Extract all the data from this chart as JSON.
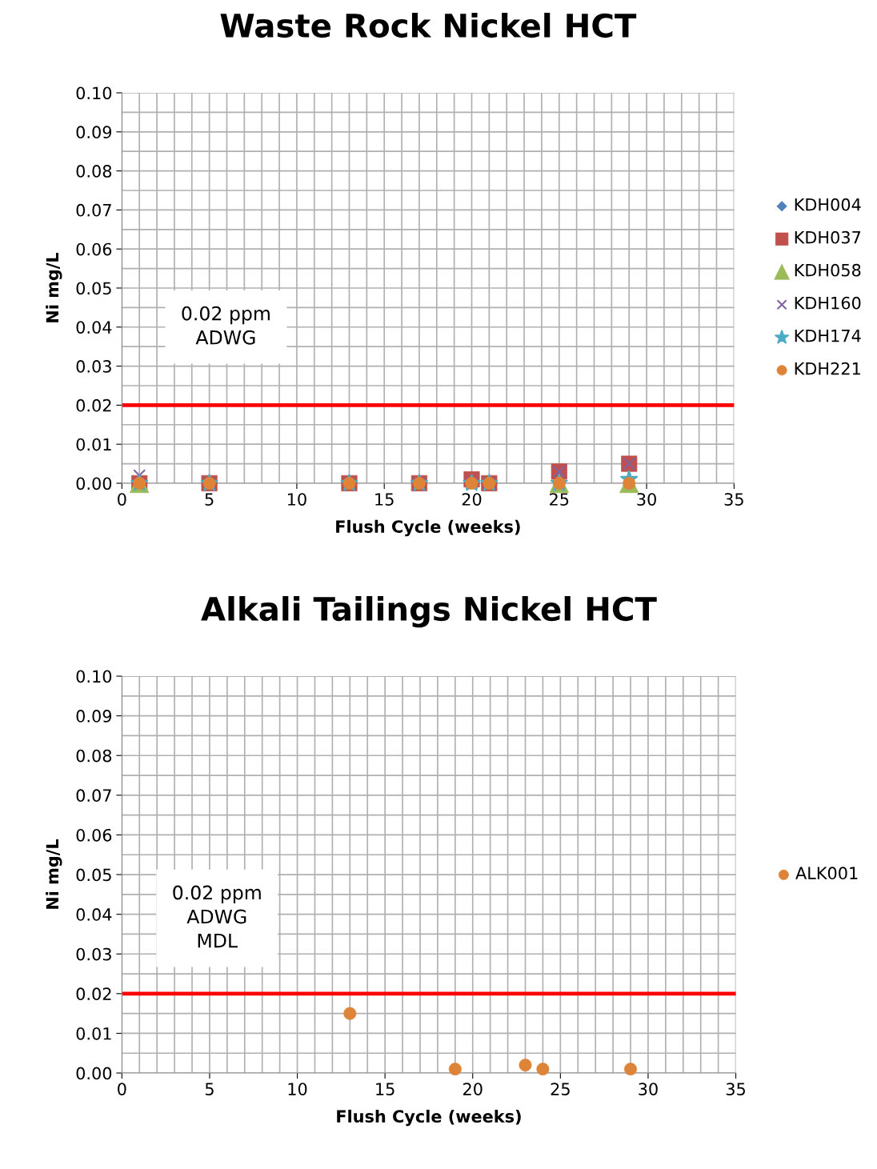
{
  "chart_data": [
    {
      "type": "scatter",
      "title": "Waste Rock Nickel HCT",
      "xlabel": "Flush Cycle (weeks)",
      "ylabel": "Ni mg/L",
      "x": [
        1,
        5,
        13,
        17,
        20,
        21,
        25,
        29
      ],
      "xlim": [
        0,
        35
      ],
      "xticks": [
        0,
        5,
        10,
        15,
        20,
        25,
        30,
        35
      ],
      "ylim": [
        0,
        0.1
      ],
      "yticks": [
        {
          "value": 0,
          "label": "0.00"
        },
        {
          "value": 0.01,
          "label": "0.01"
        },
        {
          "value": 0.02,
          "label": "0.02"
        },
        {
          "value": 0.03,
          "label": "0.03"
        },
        {
          "value": 0.04,
          "label": "0.04"
        },
        {
          "value": 0.05,
          "label": "0.05"
        },
        {
          "value": 0.06,
          "label": "0.06"
        },
        {
          "value": 0.07,
          "label": "0.07"
        },
        {
          "value": 0.08,
          "label": "0.08"
        },
        {
          "value": 0.09,
          "label": "0.09"
        },
        {
          "value": 0.1,
          "label": "0.10"
        }
      ],
      "grid": true,
      "legend": "right",
      "series": [
        {
          "name": "KDH004",
          "color": "#4f81bd",
          "marker": "diamond",
          "values": [
            null,
            null,
            null,
            null,
            null,
            null,
            null,
            null
          ]
        },
        {
          "name": "KDH037",
          "color": "#c0504d",
          "marker": "square",
          "values": [
            0,
            0,
            0,
            0,
            0.001,
            0,
            0.003,
            0.005
          ]
        },
        {
          "name": "KDH058",
          "color": "#9bbb59",
          "marker": "triangle",
          "values": [
            0,
            null,
            null,
            null,
            null,
            null,
            0,
            0
          ]
        },
        {
          "name": "KDH160",
          "color": "#8064a2",
          "marker": "cross",
          "values": [
            0.002,
            0,
            0,
            0,
            0,
            0,
            0.003,
            0.005
          ]
        },
        {
          "name": "KDH174",
          "color": "#4bacc6",
          "marker": "star",
          "values": [
            0,
            0,
            0,
            0,
            0,
            0,
            0,
            0.001
          ]
        },
        {
          "name": "KDH221",
          "color": "#dd8439",
          "marker": "circle",
          "values": [
            0,
            0,
            0,
            0,
            0,
            0,
            0,
            0
          ]
        }
      ],
      "ref_lines": [
        {
          "axis": "y",
          "value": 0.02,
          "color": "#ff0000"
        }
      ],
      "annotations": [
        "0.02 ppm\nADWG"
      ]
    },
    {
      "type": "scatter",
      "title": "Alkali Tailings Nickel HCT",
      "xlabel": "Flush Cycle (weeks)",
      "ylabel": "Ni mg/L",
      "x": [
        13,
        19,
        23,
        24,
        29
      ],
      "xlim": [
        0,
        35
      ],
      "xticks": [
        0,
        5,
        10,
        15,
        20,
        25,
        30,
        35
      ],
      "ylim": [
        0,
        0.1
      ],
      "yticks": [
        {
          "value": 0,
          "label": "0.00"
        },
        {
          "value": 0.01,
          "label": "0.01"
        },
        {
          "value": 0.02,
          "label": "0.02"
        },
        {
          "value": 0.03,
          "label": "0.03"
        },
        {
          "value": 0.04,
          "label": "0.04"
        },
        {
          "value": 0.05,
          "label": "0.05"
        },
        {
          "value": 0.06,
          "label": "0.06"
        },
        {
          "value": 0.07,
          "label": "0.07"
        },
        {
          "value": 0.08,
          "label": "0.08"
        },
        {
          "value": 0.09,
          "label": "0.09"
        },
        {
          "value": 0.1,
          "label": "0.10"
        }
      ],
      "grid": true,
      "legend": "right",
      "series": [
        {
          "name": "ALK001",
          "color": "#dd8439",
          "marker": "circle",
          "values": [
            0.015,
            0.001,
            0.002,
            0.001,
            0.001
          ]
        }
      ],
      "ref_lines": [
        {
          "axis": "y",
          "value": 0.02,
          "color": "#ff0000"
        }
      ],
      "annotations": [
        "0.02 ppm\nADWG\nMDL"
      ]
    }
  ]
}
